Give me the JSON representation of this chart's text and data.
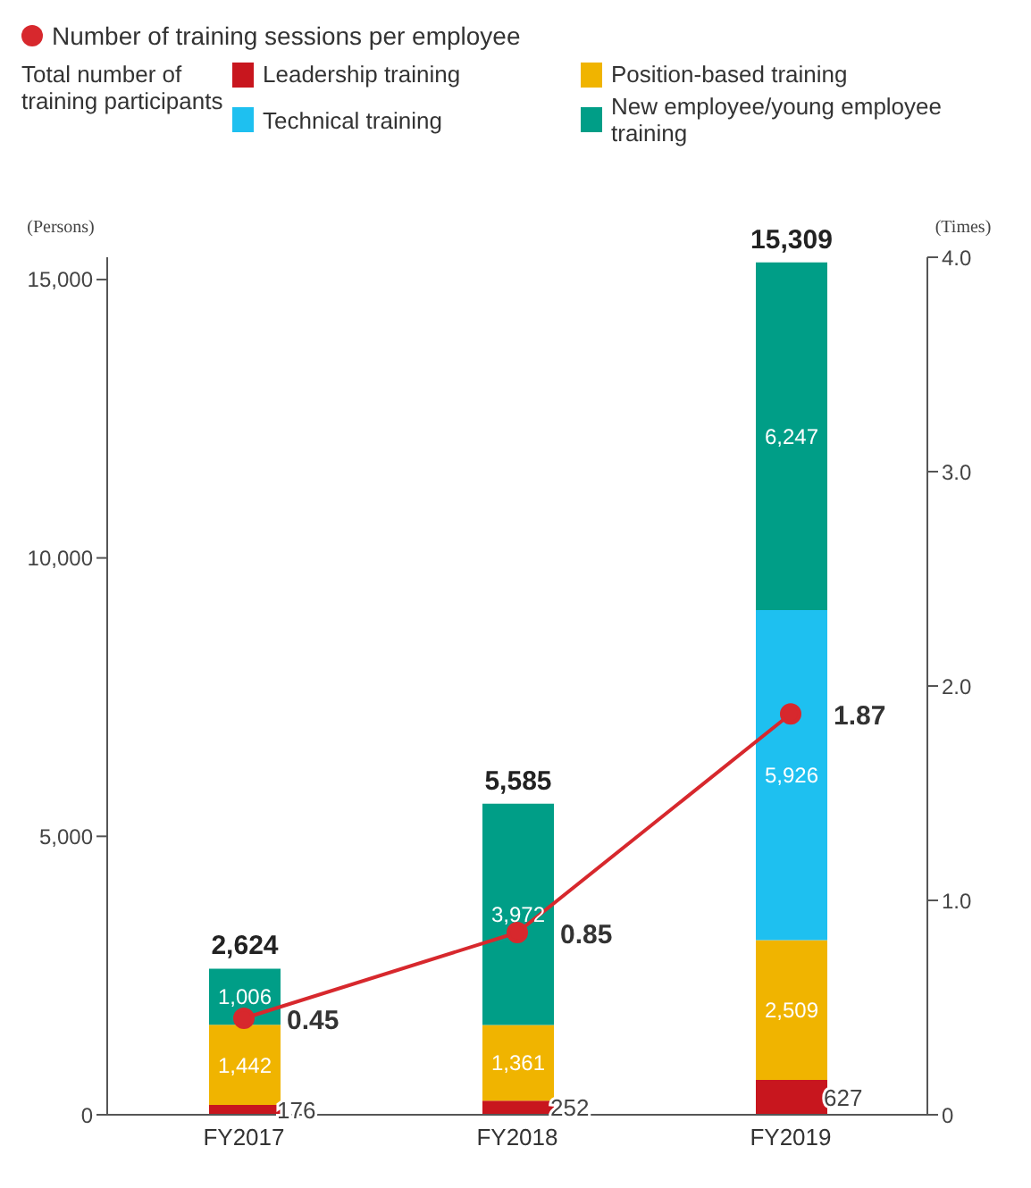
{
  "chart_data": {
    "type": "bar",
    "stacked": true,
    "categories": [
      "FY2017",
      "FY2018",
      "FY2019"
    ],
    "ylabel": "(Persons)",
    "y2label": "(Times)",
    "legend": "top",
    "legend_title": "Total number of training participants",
    "ylim": [
      0,
      15400
    ],
    "yticks": [
      {
        "value": 0,
        "label": "0"
      },
      {
        "value": 5000,
        "label": "5,000"
      },
      {
        "value": 10000,
        "label": "10,000"
      },
      {
        "value": 15000,
        "label": "15,000"
      }
    ],
    "y2lim": [
      0,
      4
    ],
    "y2ticks": [
      {
        "value": 0,
        "label": "0"
      },
      {
        "value": 1,
        "label": "1.0"
      },
      {
        "value": 2,
        "label": "2.0"
      },
      {
        "value": 3,
        "label": "3.0"
      },
      {
        "value": 4,
        "label": "4.0"
      }
    ],
    "totals": [
      "2,624",
      "5,585",
      "15,309"
    ],
    "series": [
      {
        "name": "Leadership training",
        "color": "#c8161e",
        "values": [
          176,
          252,
          627
        ],
        "value_labels": [
          "176",
          "252",
          "627"
        ]
      },
      {
        "name": "Position-based training",
        "color": "#f0b400",
        "values": [
          1442,
          1361,
          2509
        ],
        "value_labels": [
          "1,442",
          "1,361",
          "2,509"
        ]
      },
      {
        "name": "Technical training",
        "color": "#1ec0f0",
        "values": [
          null,
          null,
          5926
        ],
        "value_labels": [
          null,
          null,
          "5,926"
        ]
      },
      {
        "name": "New employee/young employee training",
        "color": "#009e87",
        "values": [
          1006,
          3972,
          6247
        ],
        "value_labels": [
          "1,006",
          "3,972",
          "6,247"
        ]
      },
      {
        "name": "Number of training sessions per employee",
        "type": "line",
        "axis": "y2",
        "color": "#d7282d",
        "marker": "circle",
        "values": [
          0.45,
          0.85,
          1.87
        ],
        "value_labels": [
          "0.45",
          "0.85",
          "1.87"
        ]
      }
    ]
  }
}
